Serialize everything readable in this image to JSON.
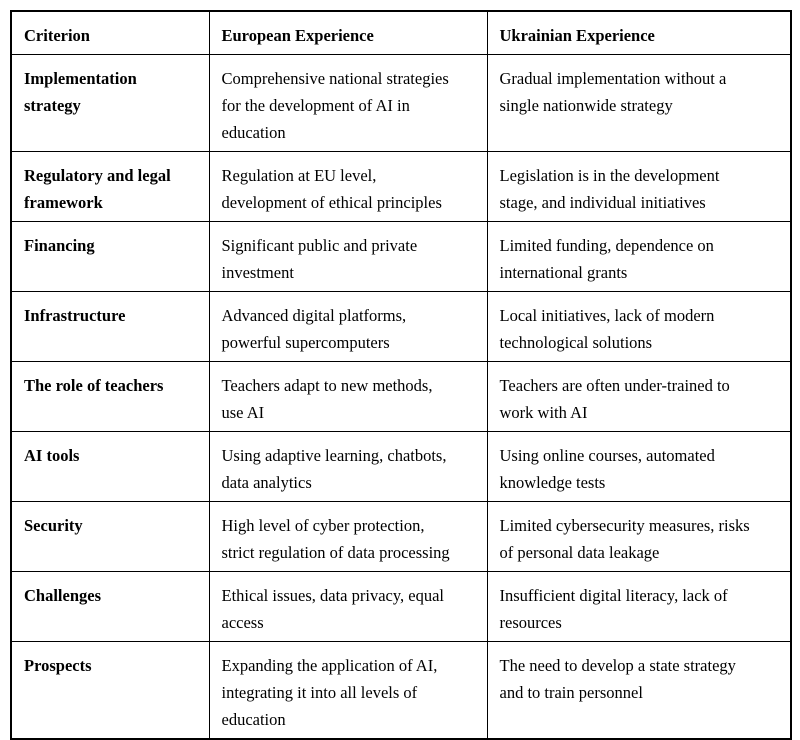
{
  "table": {
    "columns": [
      "Criterion",
      "European Experience",
      "Ukrainian Experience"
    ],
    "rows": [
      {
        "criterion": "Implementation\nstrategy",
        "european": "Comprehensive national strategies\nfor the development of AI in\neducation",
        "ukrainian": "Gradual implementation without a\nsingle nationwide strategy"
      },
      {
        "criterion": "Regulatory and legal\nframework",
        "european": "Regulation at EU level,\ndevelopment of ethical principles",
        "ukrainian": "Legislation is in the development\nstage, and individual initiatives"
      },
      {
        "criterion": "Financing",
        "european": "Significant public and private\ninvestment",
        "ukrainian": "Limited funding, dependence on\ninternational grants"
      },
      {
        "criterion": "Infrastructure",
        "european": "Advanced digital platforms,\npowerful supercomputers",
        "ukrainian": "Local initiatives, lack of modern\ntechnological solutions"
      },
      {
        "criterion": "The role of teachers",
        "european": "Teachers adapt to new methods,\nuse AI",
        "ukrainian": "Teachers are often under-trained to\nwork with AI"
      },
      {
        "criterion": "AI tools",
        "european": "Using adaptive learning, chatbots,\ndata analytics",
        "ukrainian": "Using online courses, automated\nknowledge tests"
      },
      {
        "criterion": "Security",
        "european": "High level of cyber protection,\nstrict regulation of data processing",
        "ukrainian": "Limited cybersecurity measures, risks\nof personal data leakage"
      },
      {
        "criterion": "Challenges",
        "european": "Ethical issues, data privacy, equal\naccess",
        "ukrainian": "Insufficient digital literacy, lack of\nresources"
      },
      {
        "criterion": "Prospects",
        "european": "Expanding the application of AI,\nintegrating it into all levels of\neducation",
        "ukrainian": "The need to develop a state strategy\nand to train personnel"
      }
    ]
  }
}
